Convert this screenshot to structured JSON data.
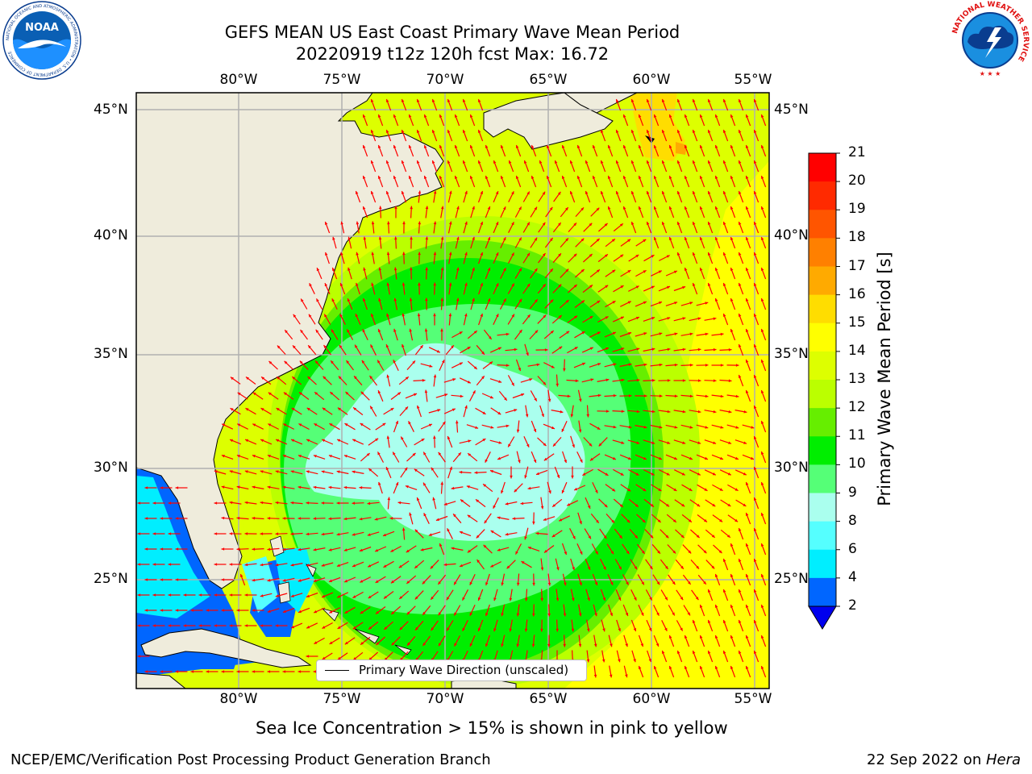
{
  "header": {
    "title_line1": "GEFS MEAN US East Coast Primary Wave Mean Period",
    "title_line2": "20220919 t12z 120h fcst   Max: 16.72"
  },
  "map": {
    "lon_labels": [
      "80°W",
      "75°W",
      "70°W",
      "65°W",
      "60°W",
      "55°W"
    ],
    "lat_labels": [
      "45°N",
      "40°N",
      "35°N",
      "30°N",
      "25°N"
    ],
    "legend_label": "Primary Wave Direction (unscaled)",
    "vector_color": "#ff0000",
    "land_color": "#efecdc"
  },
  "colorbar": {
    "label": "Primary Wave Mean Period [s]",
    "ticks": [
      "21",
      "20",
      "19",
      "18",
      "17",
      "16",
      "15",
      "14",
      "13",
      "12",
      "11",
      "10",
      "9",
      "8",
      "6",
      "4",
      "2"
    ],
    "colors": [
      "#ff0000",
      "#ff2a00",
      "#ff5500",
      "#ff8000",
      "#ffaa00",
      "#ffdd00",
      "#ffff00",
      "#ddff00",
      "#bbff00",
      "#66ee00",
      "#00ee00",
      "#55ff77",
      "#aaffee",
      "#55ffff",
      "#00eeff",
      "#0066ff"
    ],
    "under_color": "#0000ee"
  },
  "logos": {
    "noaa_text": "NOAA",
    "noaa_ring_text": "NATIONAL OCEANIC AND ATMOSPHERIC ADMINISTRATION • U.S. DEPARTMENT OF COMMERCE",
    "nws_ring_text": "NATIONAL WEATHER SERVICE"
  },
  "footer": {
    "sea_ice_note": "Sea Ice Concentration > 15% is shown in pink to yellow",
    "branch": "NCEP/EMC/Verification Post Processing Product Generation Branch",
    "date_prefix": "22 Sep 2022 on ",
    "machine": "Hera"
  }
}
